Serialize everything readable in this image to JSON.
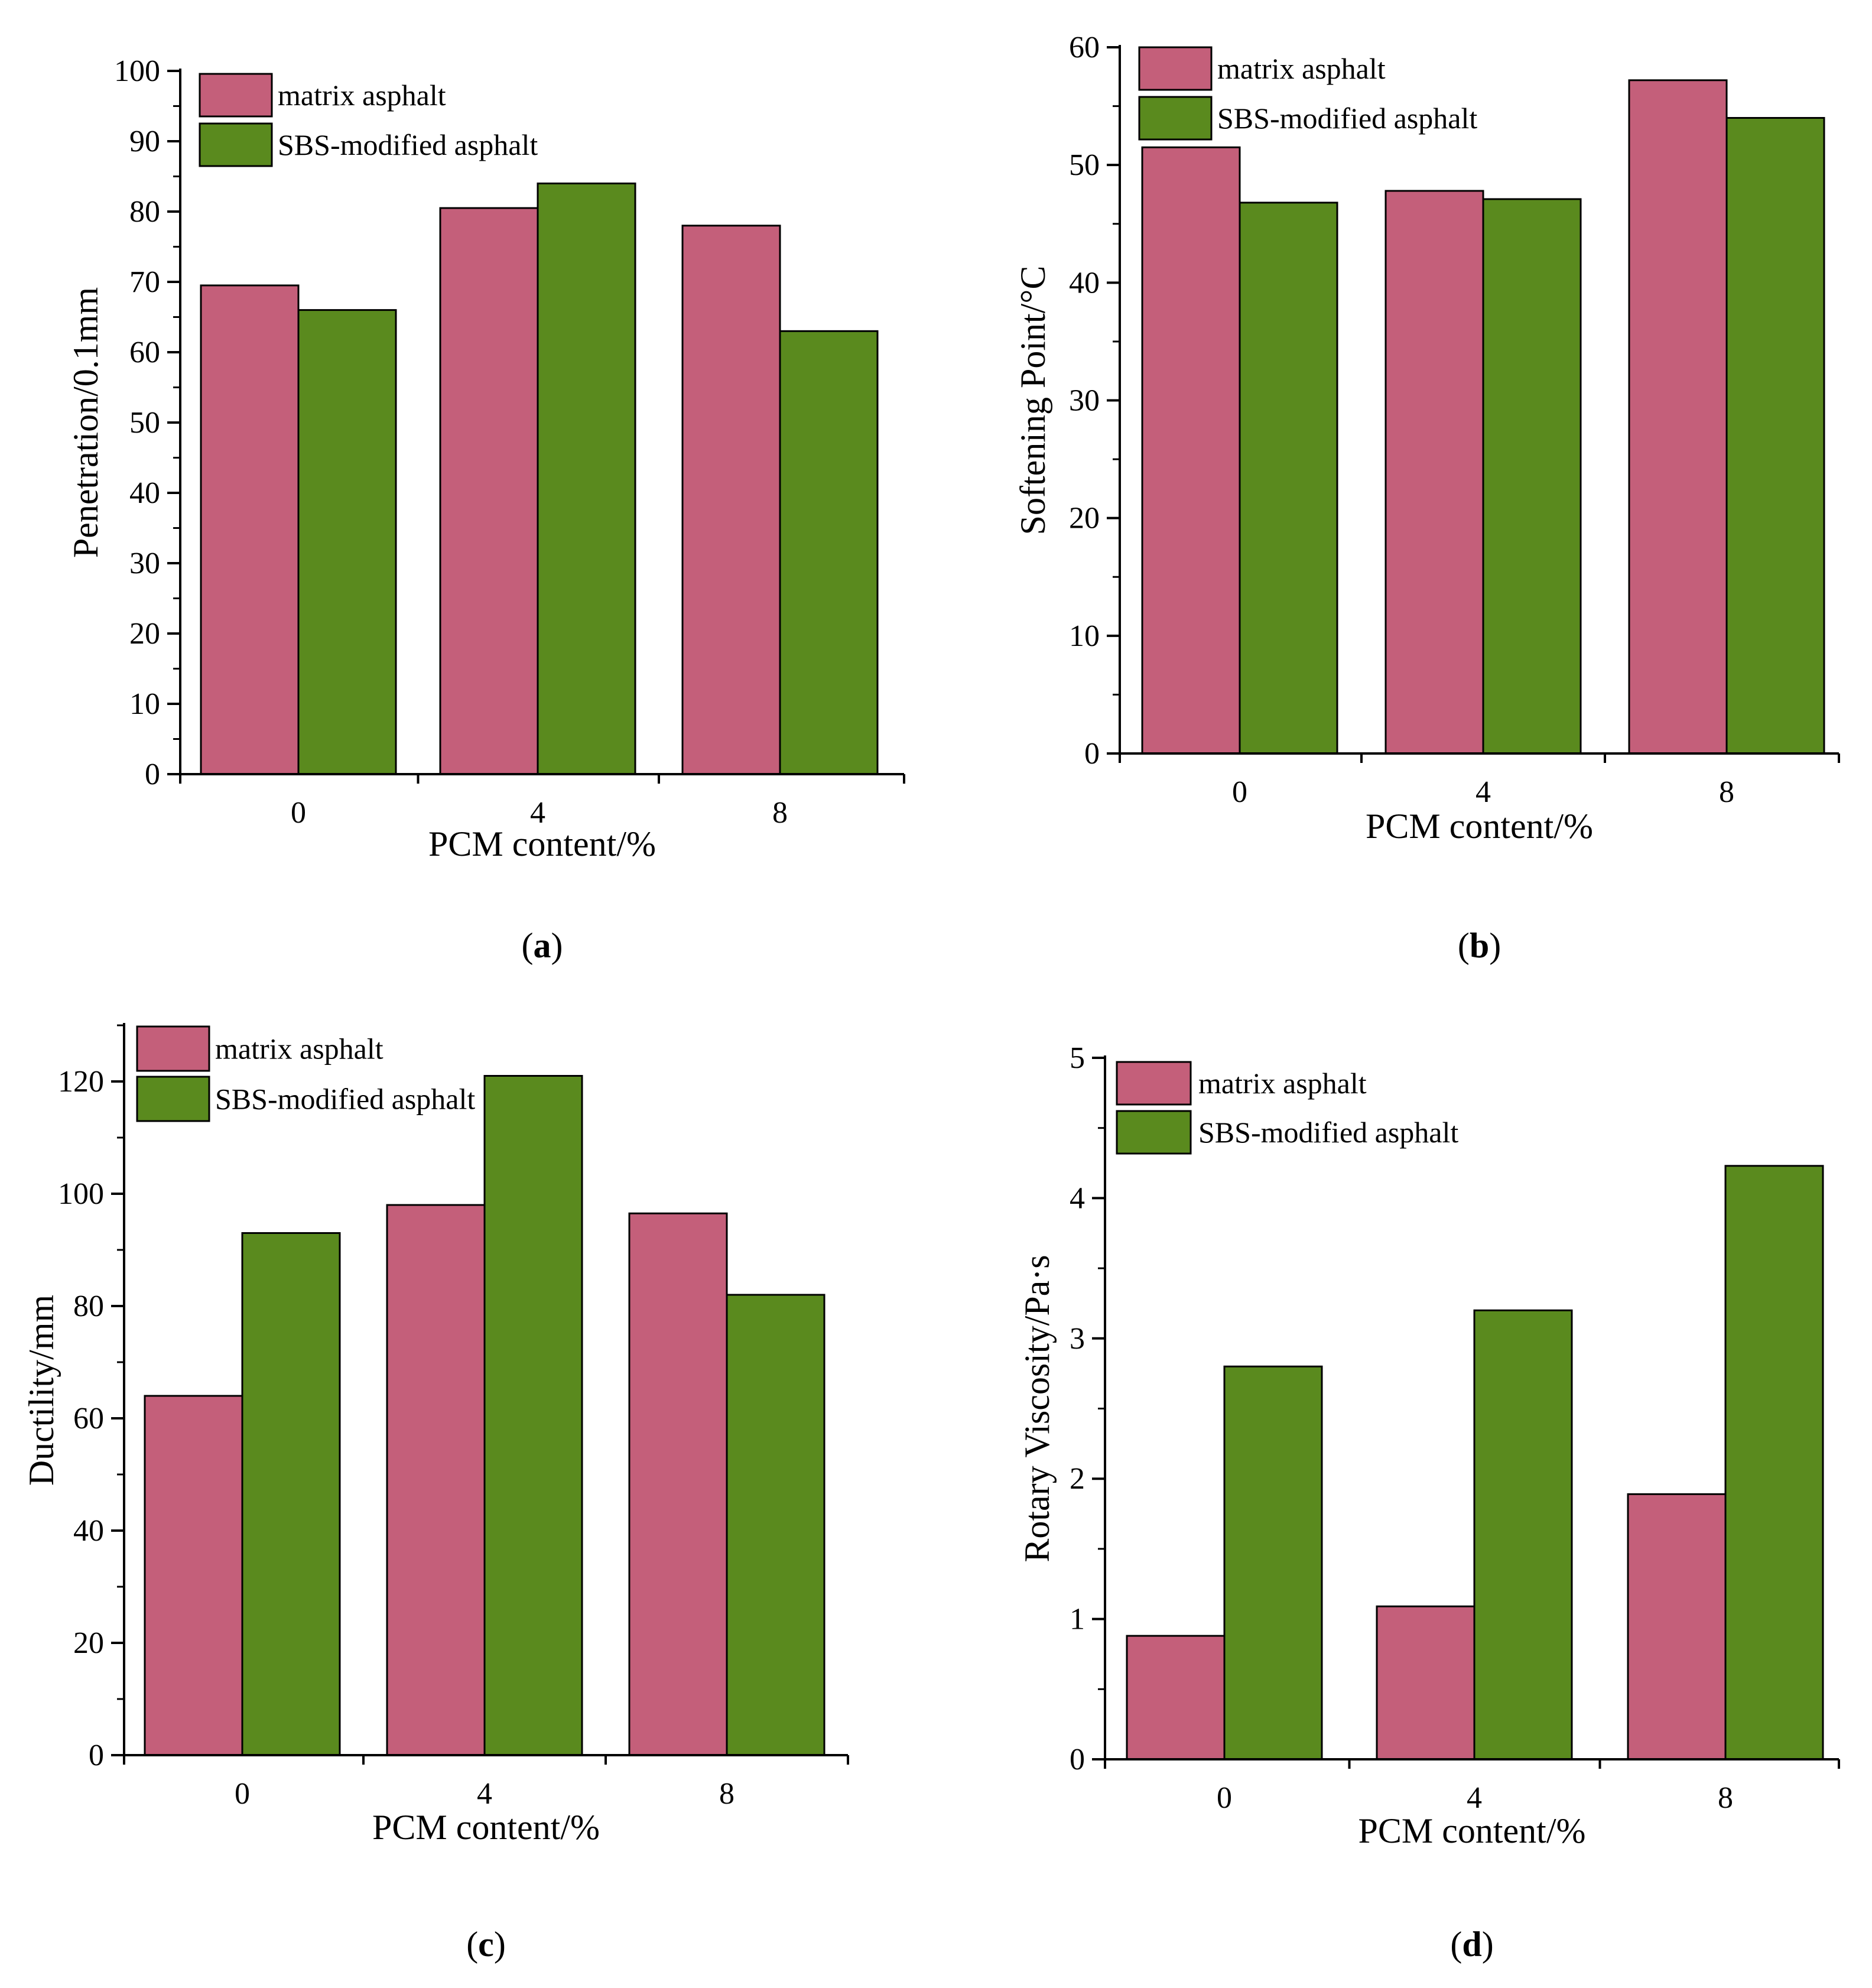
{
  "colors": {
    "matrix_asphalt": "#c45f7a",
    "sbs_modified_asphalt": "#5a8a1e",
    "axis": "#000000"
  },
  "chart_data": [
    {
      "panel": "(a)",
      "type": "bar",
      "categories": [
        "0",
        "4",
        "8"
      ],
      "xlabel": "PCM content/%",
      "ylabel": "Penetration/0.1mm",
      "ylim": [
        0,
        100
      ],
      "yticks": [
        0,
        10,
        20,
        30,
        40,
        50,
        60,
        70,
        80,
        90,
        100
      ],
      "legend_position": "top-left",
      "series": [
        {
          "name": "matrix asphalt",
          "values": [
            69.5,
            80.5,
            78
          ]
        },
        {
          "name": "SBS-modified asphalt",
          "values": [
            66,
            84,
            63
          ]
        }
      ]
    },
    {
      "panel": "(b)",
      "type": "bar",
      "categories": [
        "0",
        "4",
        "8"
      ],
      "xlabel": "PCM content/%",
      "ylabel": "Softening Point/°C",
      "ylim": [
        0,
        60
      ],
      "yticks": [
        0,
        10,
        20,
        30,
        40,
        50,
        60
      ],
      "legend_position": "top-left",
      "series": [
        {
          "name": "matrix asphalt",
          "values": [
            51.5,
            47.8,
            57.2
          ]
        },
        {
          "name": "SBS-modified asphalt",
          "values": [
            46.8,
            47.1,
            54
          ]
        }
      ]
    },
    {
      "panel": "(c)",
      "type": "bar",
      "categories": [
        "0",
        "4",
        "8"
      ],
      "xlabel": "PCM content/%",
      "ylabel": "Ductility/mm",
      "ylim": [
        0,
        130
      ],
      "yticks": [
        0,
        20,
        40,
        60,
        80,
        100,
        120
      ],
      "legend_position": "top-left",
      "series": [
        {
          "name": "matrix asphalt",
          "values": [
            64,
            98,
            96.5
          ]
        },
        {
          "name": "SBS-modified asphalt",
          "values": [
            93,
            121,
            82
          ]
        }
      ]
    },
    {
      "panel": "(d)",
      "type": "bar",
      "categories": [
        "0",
        "4",
        "8"
      ],
      "xlabel": "PCM content/%",
      "ylabel": "Rotary Viscosity/Pa·s",
      "ylim": [
        0,
        5
      ],
      "yticks": [
        0,
        1,
        2,
        3,
        4,
        5
      ],
      "legend_position": "top-left",
      "series": [
        {
          "name": "matrix asphalt",
          "values": [
            0.88,
            1.09,
            1.89
          ]
        },
        {
          "name": "SBS-modified asphalt",
          "values": [
            2.8,
            3.2,
            4.23
          ]
        }
      ]
    }
  ]
}
